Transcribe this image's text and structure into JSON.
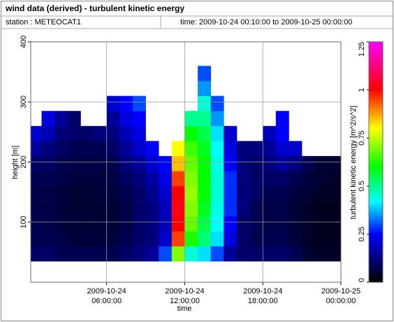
{
  "chart_data": {
    "type": "heatmap",
    "title": "wind data (derived) - turbulent kinetic energy",
    "station": "station : METEOCAT1",
    "period": "time: 2009-10-24 00:10:00 to 2009-10-25 00:00:00",
    "xlabel": "time",
    "ylabel": "height [m]",
    "zlabel": "turbulent kinetic energy [m^2/s^2]",
    "xlim": [
      "2009-10-24 00:10:00",
      "2009-10-25 00:00:00"
    ],
    "xticks": [
      "2009-10-24 06:00:00",
      "2009-10-24 12:00:00",
      "2009-10-24 18:00:00",
      "2009-10-25 00:00:00"
    ],
    "ylim": [
      0,
      400
    ],
    "yticks": [
      100,
      200,
      300,
      400
    ],
    "zlim": [
      0,
      1.25
    ],
    "zticks": [
      0,
      0.25,
      0.5,
      0.75,
      1,
      1.25
    ],
    "grid": true,
    "colormap": [
      {
        "value": 0,
        "color": "#000000"
      },
      {
        "value": 0.12,
        "color": "#00007a"
      },
      {
        "value": 0.25,
        "color": "#0000ff"
      },
      {
        "value": 0.42,
        "color": "#00ffff"
      },
      {
        "value": 0.6,
        "color": "#00ff00"
      },
      {
        "value": 0.8,
        "color": "#ffff00"
      },
      {
        "value": 1,
        "color": "#ff0000"
      },
      {
        "value": 1.25,
        "color": "#ff00ff"
      }
    ],
    "x": [
      "2009-10-24 00:10:00",
      "2009-10-24 01:00:00",
      "2009-10-24 02:00:00",
      "2009-10-24 03:00:00",
      "2009-10-24 04:00:00",
      "2009-10-24 05:00:00",
      "2009-10-24 06:00:00",
      "2009-10-24 07:00:00",
      "2009-10-24 08:00:00",
      "2009-10-24 09:00:00",
      "2009-10-24 10:00:00",
      "2009-10-24 11:00:00",
      "2009-10-24 12:00:00",
      "2009-10-24 13:00:00",
      "2009-10-24 14:00:00",
      "2009-10-24 15:00:00",
      "2009-10-24 16:00:00",
      "2009-10-24 17:00:00",
      "2009-10-24 18:00:00",
      "2009-10-24 19:00:00",
      "2009-10-24 20:00:00",
      "2009-10-24 21:00:00",
      "2009-10-24 22:00:00",
      "2009-10-24 23:00:00",
      "2009-10-25 00:00:00"
    ],
    "y": [
      35,
      60,
      85,
      110,
      135,
      160,
      185,
      210,
      235,
      260,
      285,
      310,
      335,
      360
    ],
    "values": [
      [
        0.1,
        0.08,
        0.08,
        0.07,
        0.07,
        0.08,
        0.1,
        0.15,
        0.2,
        null,
        null,
        null,
        null
      ],
      [
        0.1,
        0.08,
        0.07,
        0.07,
        0.07,
        0.08,
        0.1,
        0.12,
        0.18,
        0.22,
        null,
        null,
        null
      ],
      [
        0.08,
        0.07,
        0.06,
        0.06,
        0.06,
        0.07,
        0.08,
        0.1,
        0.12,
        0.15,
        null,
        null,
        null
      ],
      [
        0.08,
        0.06,
        0.05,
        0.05,
        0.05,
        0.06,
        0.07,
        0.08,
        0.1,
        0.1,
        null,
        null,
        null
      ],
      [
        0.08,
        0.06,
        0.05,
        0.05,
        0.05,
        0.06,
        0.07,
        0.08,
        0.1,
        null,
        null,
        null,
        null
      ],
      [
        0.08,
        0.06,
        0.05,
        0.05,
        0.06,
        0.06,
        0.07,
        0.08,
        0.12,
        null,
        null,
        null,
        null
      ],
      [
        0.08,
        0.06,
        0.05,
        0.05,
        0.06,
        0.07,
        0.08,
        0.1,
        0.12,
        0.15,
        0.2,
        null,
        null
      ],
      [
        0.1,
        0.08,
        0.07,
        0.07,
        0.08,
        0.1,
        0.12,
        0.15,
        0.18,
        0.22,
        0.25,
        null,
        null
      ],
      [
        0.12,
        0.1,
        0.1,
        0.1,
        0.1,
        0.12,
        0.15,
        0.2,
        0.22,
        0.25,
        0.3,
        null,
        null
      ],
      [
        0.15,
        0.12,
        0.12,
        0.12,
        0.14,
        0.16,
        0.2,
        0.25,
        null,
        null,
        null,
        null,
        null
      ],
      [
        0.3,
        0.2,
        0.18,
        0.18,
        0.2,
        0.22,
        0.25,
        null,
        null,
        null,
        null,
        null,
        null
      ],
      [
        0.7,
        0.95,
        1.0,
        1.02,
        1.0,
        0.95,
        0.85,
        0.8,
        null,
        null,
        null,
        null,
        null
      ],
      [
        0.45,
        0.62,
        0.68,
        0.7,
        0.72,
        0.7,
        0.68,
        0.65,
        0.6,
        0.5,
        null,
        null,
        null
      ],
      [
        0.4,
        0.52,
        0.55,
        0.58,
        0.6,
        0.6,
        0.6,
        0.58,
        0.55,
        0.5,
        0.45,
        0.35,
        0.3
      ],
      [
        0.3,
        0.4,
        0.42,
        0.44,
        0.45,
        0.45,
        0.44,
        0.42,
        0.4,
        0.35,
        0.3,
        null,
        null
      ],
      [
        0.15,
        0.22,
        0.25,
        0.28,
        0.28,
        0.28,
        0.25,
        0.22,
        0.2,
        null,
        null,
        null,
        null
      ],
      [
        0.1,
        0.1,
        0.1,
        0.12,
        0.12,
        0.12,
        0.12,
        0.12,
        null,
        null,
        null,
        null,
        null
      ],
      [
        0.1,
        0.08,
        0.08,
        0.08,
        0.1,
        0.1,
        0.1,
        0.12,
        null,
        null,
        null,
        null,
        null
      ],
      [
        0.1,
        0.08,
        0.07,
        0.07,
        0.08,
        0.1,
        0.12,
        0.15,
        0.18,
        null,
        null,
        null,
        null
      ],
      [
        0.1,
        0.08,
        0.07,
        0.07,
        0.08,
        0.1,
        0.15,
        0.2,
        0.25,
        0.25,
        null,
        null,
        null
      ],
      [
        0.08,
        0.06,
        0.05,
        0.05,
        0.06,
        0.08,
        0.12,
        0.2,
        null,
        null,
        null,
        null,
        null
      ],
      [
        0.05,
        0.04,
        0.04,
        0.04,
        0.05,
        0.06,
        0.08,
        null,
        null,
        null,
        null,
        null,
        null
      ],
      [
        0.04,
        0.03,
        0.03,
        0.03,
        0.04,
        0.05,
        0.05,
        null,
        null,
        null,
        null,
        null,
        null
      ],
      [
        0.04,
        0.03,
        0.03,
        0.03,
        0.04,
        0.04,
        0.05,
        null,
        null,
        null,
        null,
        null,
        null
      ]
    ]
  }
}
